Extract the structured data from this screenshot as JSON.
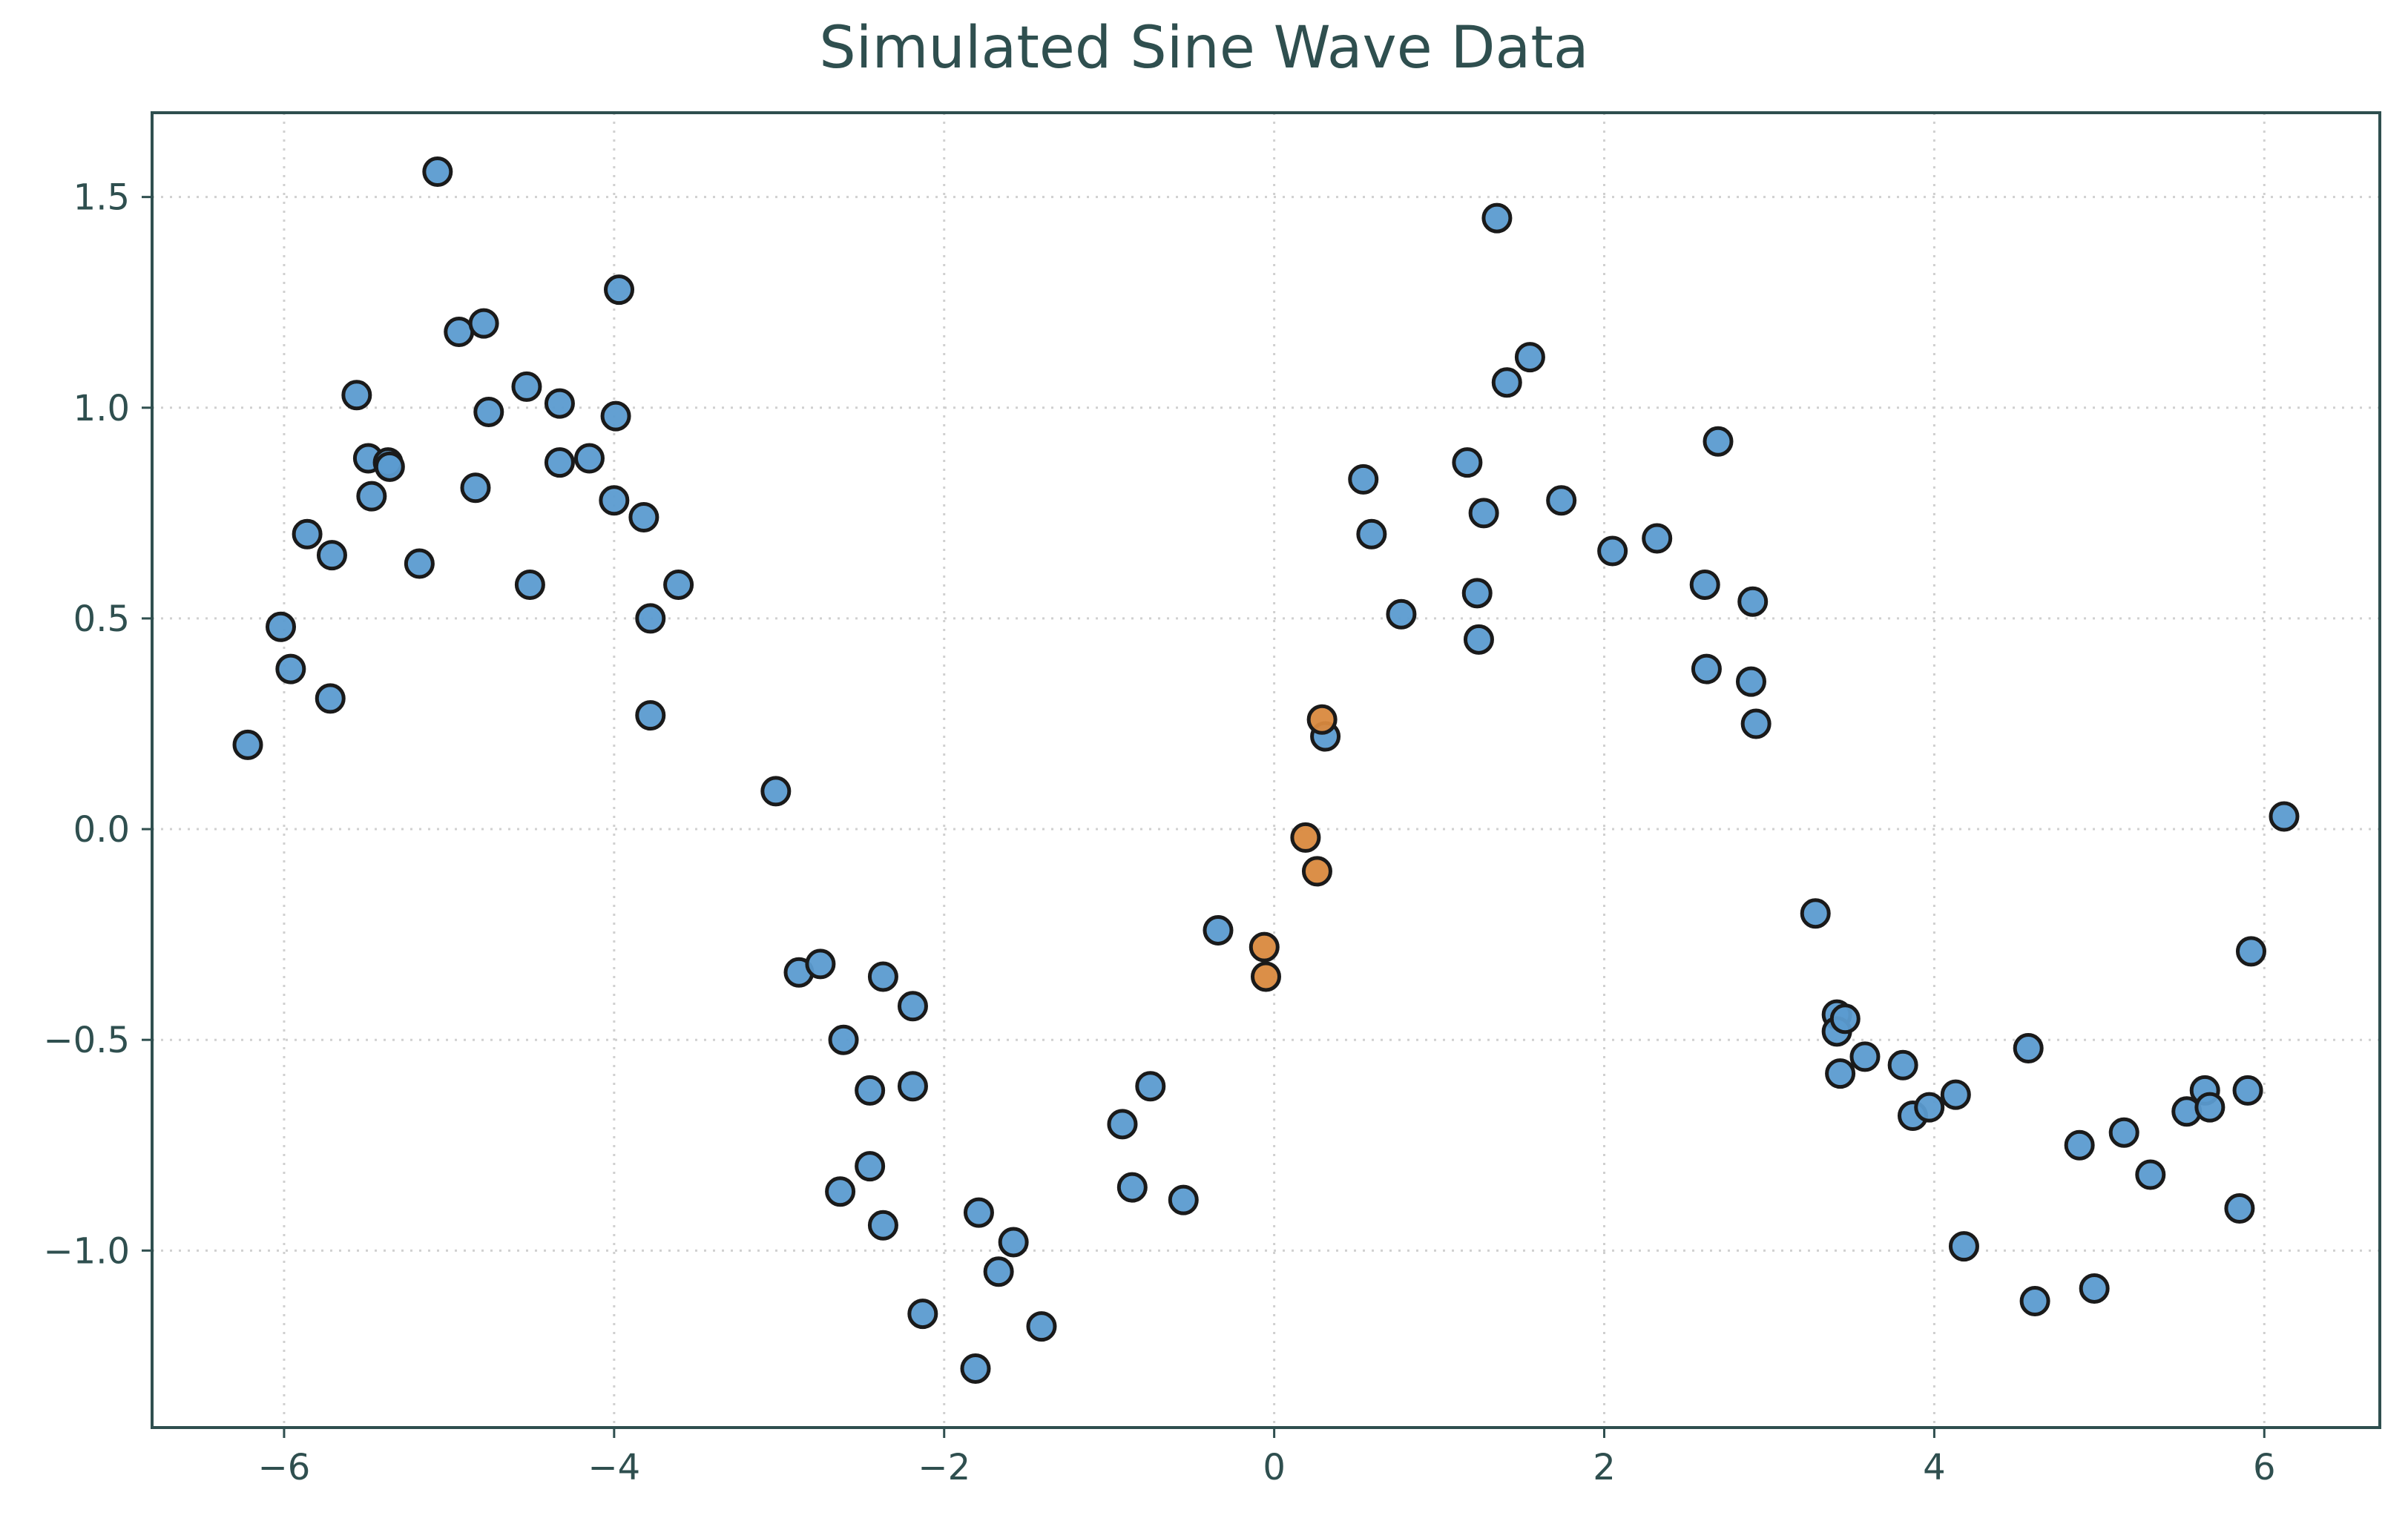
{
  "chart_data": {
    "type": "scatter",
    "title": "Simulated Sine Wave Data",
    "xlabel": "",
    "ylabel": "",
    "xlim": [
      -6.8,
      6.7
    ],
    "ylim": [
      -1.42,
      1.7
    ],
    "xticks": [
      -6,
      -4,
      -2,
      0,
      2,
      4,
      6
    ],
    "yticks": [
      -1.0,
      -0.5,
      0.0,
      0.5,
      1.0,
      1.5
    ],
    "xtick_labels": [
      "−6",
      "−4",
      "−2",
      "0",
      "2",
      "4",
      "6"
    ],
    "ytick_labels": [
      "−1.0",
      "−0.5",
      "0.0",
      "0.5",
      "1.0",
      "1.5"
    ],
    "grid": true,
    "colors": {
      "series1": "#5b9bd0",
      "series2": "#d9893e",
      "edge": "#1a1a1a",
      "axis": "#2f4f4f",
      "grid": "#d0d0d0"
    },
    "series": [
      {
        "color": "#5b9bd0",
        "points": [
          [
            -6.22,
            0.2
          ],
          [
            -6.02,
            0.48
          ],
          [
            -5.96,
            0.38
          ],
          [
            -5.86,
            0.7
          ],
          [
            -5.72,
            0.31
          ],
          [
            -5.71,
            0.65
          ],
          [
            -5.56,
            1.03
          ],
          [
            -5.49,
            0.88
          ],
          [
            -5.47,
            0.79
          ],
          [
            -5.37,
            0.87
          ],
          [
            -5.36,
            0.86
          ],
          [
            -5.18,
            0.63
          ],
          [
            -5.07,
            1.56
          ],
          [
            -4.94,
            1.18
          ],
          [
            -4.84,
            0.81
          ],
          [
            -4.79,
            1.2
          ],
          [
            -4.76,
            0.99
          ],
          [
            -4.53,
            1.05
          ],
          [
            -4.51,
            0.58
          ],
          [
            -4.33,
            1.01
          ],
          [
            -4.33,
            0.87
          ],
          [
            -4.15,
            0.88
          ],
          [
            -4.0,
            0.78
          ],
          [
            -3.99,
            0.98
          ],
          [
            -3.97,
            1.28
          ],
          [
            -3.82,
            0.74
          ],
          [
            -3.78,
            0.5
          ],
          [
            -3.78,
            0.27
          ],
          [
            -3.61,
            0.58
          ],
          [
            -3.02,
            0.09
          ],
          [
            -2.88,
            -0.34
          ],
          [
            -2.75,
            -0.32
          ],
          [
            -2.61,
            -0.5
          ],
          [
            -2.63,
            -0.86
          ],
          [
            -2.45,
            -0.62
          ],
          [
            -2.45,
            -0.8
          ],
          [
            -2.37,
            -0.35
          ],
          [
            -2.37,
            -0.94
          ],
          [
            -2.19,
            -0.42
          ],
          [
            -2.19,
            -0.61
          ],
          [
            -2.13,
            -1.15
          ],
          [
            -1.79,
            -0.91
          ],
          [
            -1.81,
            -1.28
          ],
          [
            -1.67,
            -1.05
          ],
          [
            -1.58,
            -0.98
          ],
          [
            -1.41,
            -1.18
          ],
          [
            -0.92,
            -0.7
          ],
          [
            -0.86,
            -0.85
          ],
          [
            -0.75,
            -0.61
          ],
          [
            -0.55,
            -0.88
          ],
          [
            -0.34,
            -0.24
          ],
          [
            0.31,
            0.22
          ],
          [
            0.54,
            0.83
          ],
          [
            0.59,
            0.7
          ],
          [
            0.77,
            0.51
          ],
          [
            1.17,
            0.87
          ],
          [
            1.23,
            0.56
          ],
          [
            1.24,
            0.45
          ],
          [
            1.27,
            0.75
          ],
          [
            1.35,
            1.45
          ],
          [
            1.41,
            1.06
          ],
          [
            1.55,
            1.12
          ],
          [
            1.74,
            0.78
          ],
          [
            2.05,
            0.66
          ],
          [
            2.32,
            0.69
          ],
          [
            2.61,
            0.58
          ],
          [
            2.62,
            0.38
          ],
          [
            2.69,
            0.92
          ],
          [
            2.9,
            0.54
          ],
          [
            2.89,
            0.35
          ],
          [
            2.92,
            0.25
          ],
          [
            3.28,
            -0.2
          ],
          [
            3.41,
            -0.44
          ],
          [
            3.41,
            -0.48
          ],
          [
            3.46,
            -0.45
          ],
          [
            3.43,
            -0.58
          ],
          [
            3.58,
            -0.54
          ],
          [
            3.81,
            -0.56
          ],
          [
            3.87,
            -0.68
          ],
          [
            3.97,
            -0.66
          ],
          [
            4.13,
            -0.63
          ],
          [
            4.18,
            -0.99
          ],
          [
            4.57,
            -0.52
          ],
          [
            4.61,
            -1.12
          ],
          [
            4.88,
            -0.75
          ],
          [
            4.97,
            -1.09
          ],
          [
            5.15,
            -0.72
          ],
          [
            5.31,
            -0.82
          ],
          [
            5.53,
            -0.67
          ],
          [
            5.64,
            -0.62
          ],
          [
            5.67,
            -0.66
          ],
          [
            5.85,
            -0.9
          ],
          [
            5.9,
            -0.62
          ],
          [
            5.92,
            -0.29
          ],
          [
            6.12,
            0.03
          ]
        ]
      },
      {
        "color": "#d9893e",
        "points": [
          [
            -0.06,
            -0.28
          ],
          [
            -0.05,
            -0.35
          ],
          [
            0.19,
            -0.02
          ],
          [
            0.26,
            -0.1
          ],
          [
            0.29,
            0.26
          ]
        ]
      }
    ]
  }
}
